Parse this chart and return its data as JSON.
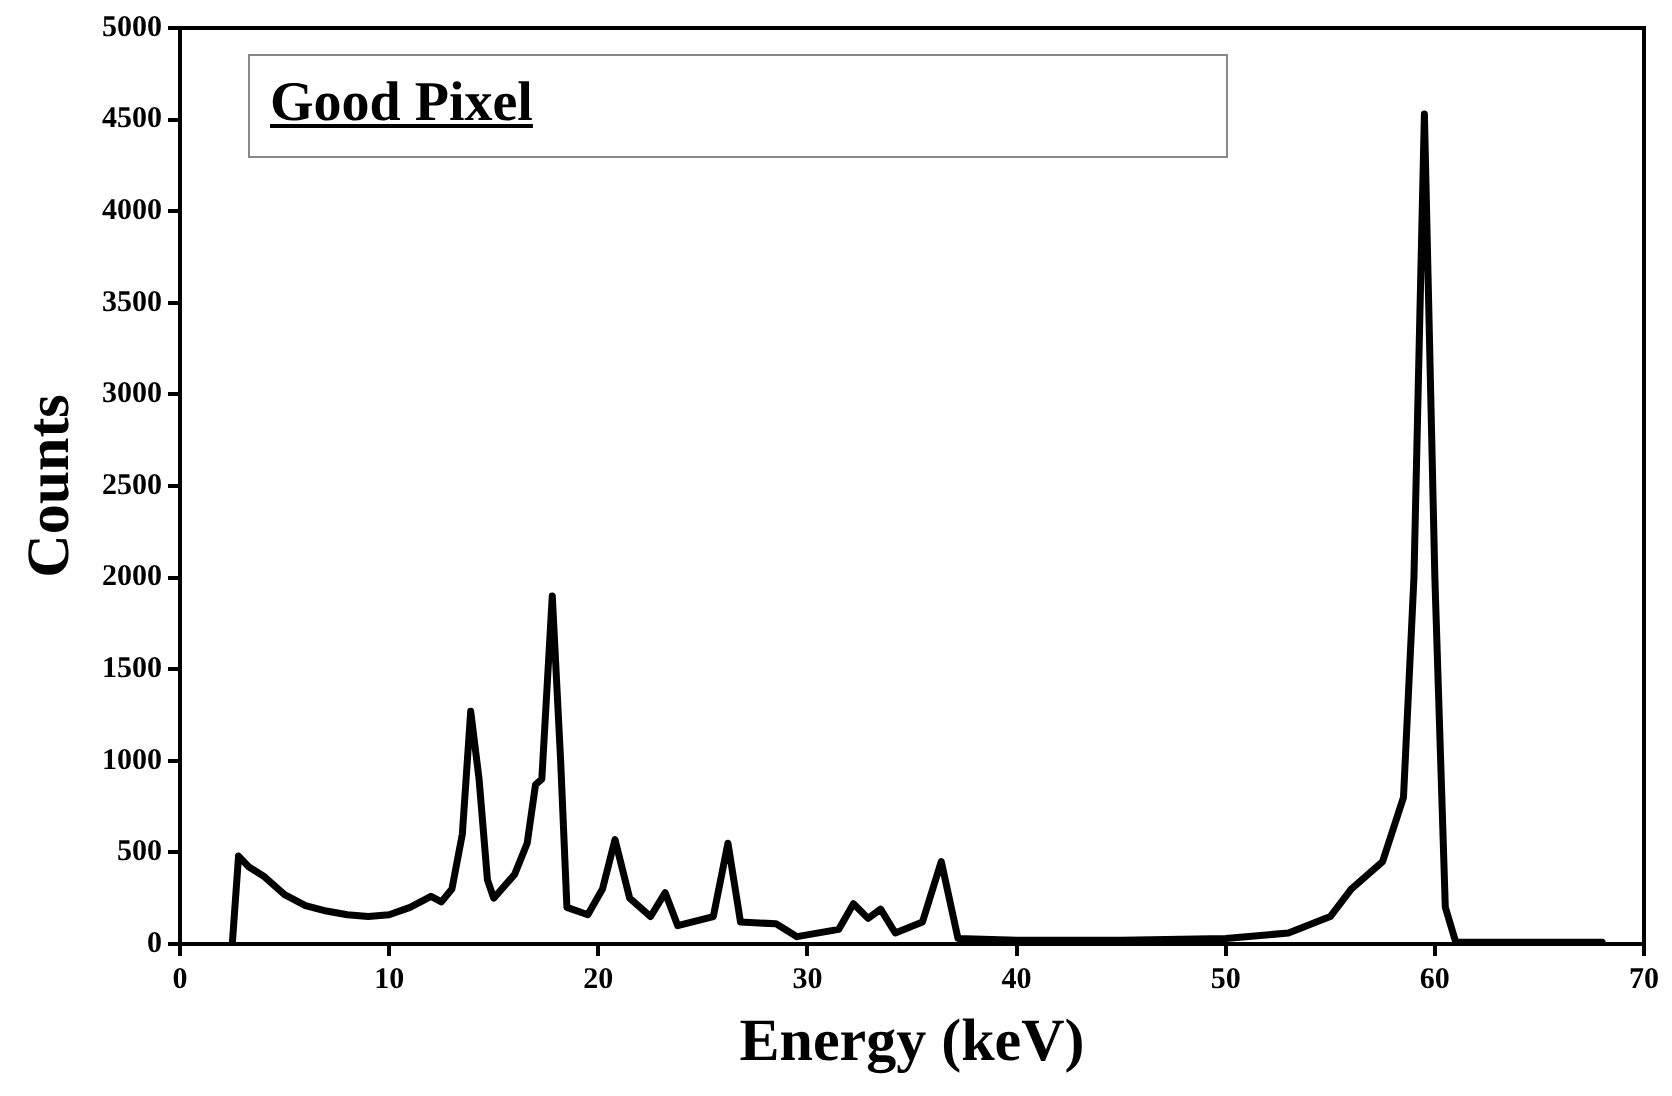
{
  "chart_data": {
    "type": "line",
    "title": "Good Pixel",
    "xlabel": "Energy (keV)",
    "ylabel": "Counts",
    "xlim": [
      0,
      70
    ],
    "xticks": [
      0,
      10,
      20,
      30,
      40,
      50,
      60,
      70
    ],
    "ylim": [
      0,
      5000
    ],
    "yticks": [
      0,
      500,
      1000,
      1500,
      2000,
      2500,
      3000,
      3500,
      4000,
      4500,
      5000
    ],
    "grid": false,
    "legend": false,
    "marker": "none",
    "line_style": "solid",
    "series": [
      {
        "color": "#000000",
        "x": [
          2.5,
          2.8,
          3.3,
          4,
          5,
          6,
          7,
          8,
          9,
          10,
          11,
          12,
          12.5,
          13,
          13.5,
          13.9,
          14.3,
          14.7,
          15,
          16,
          16.6,
          17,
          17.3,
          17.8,
          18.2,
          18.5,
          19.5,
          20.2,
          20.8,
          21.5,
          22.5,
          23.2,
          23.8,
          25.5,
          26.2,
          26.8,
          28.5,
          29.5,
          31.5,
          32.2,
          32.9,
          33.5,
          34.2,
          35.5,
          36.4,
          37.2,
          40,
          45,
          50,
          53,
          55,
          56,
          57.5,
          58.5,
          59,
          59.5,
          60,
          60.5,
          61,
          65,
          68
        ],
        "values": [
          0,
          480,
          420,
          370,
          270,
          210,
          180,
          160,
          150,
          160,
          200,
          260,
          230,
          300,
          600,
          1270,
          900,
          350,
          250,
          380,
          550,
          870,
          900,
          1900,
          1000,
          200,
          160,
          300,
          570,
          250,
          150,
          280,
          100,
          150,
          550,
          120,
          110,
          40,
          80,
          220,
          140,
          190,
          60,
          120,
          450,
          30,
          20,
          20,
          30,
          60,
          150,
          300,
          450,
          800,
          2000,
          4530,
          2000,
          200,
          10,
          10,
          10
        ]
      }
    ]
  }
}
